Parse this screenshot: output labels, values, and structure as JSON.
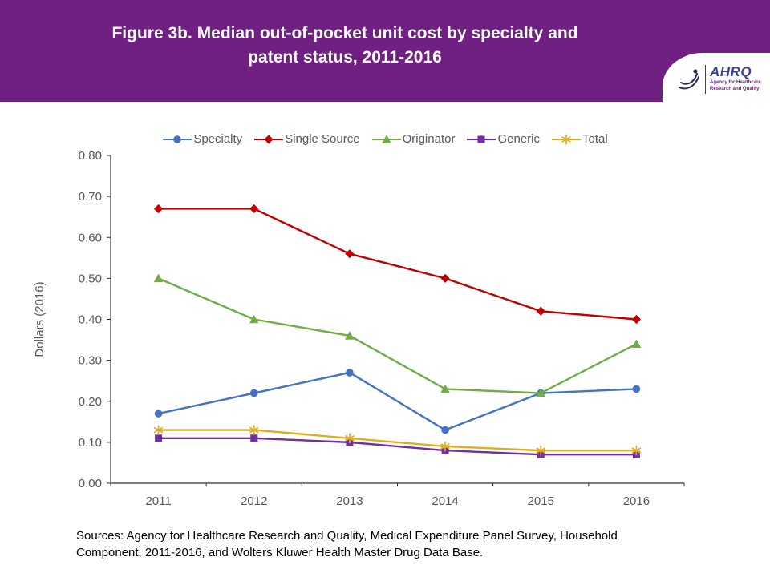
{
  "header": {
    "title_line1": "Figure 3b. Median out-of-pocket unit cost by specialty and",
    "title_line2": "patent status, 2011-2016",
    "background_color": "#702082",
    "logo": {
      "name": "AHRQ",
      "tagline_line1": "Agency for Healthcare",
      "tagline_line2": "Research and Quality"
    }
  },
  "chart_data": {
    "type": "line",
    "title": "Figure 3b. Median out-of-pocket unit cost by specialty and patent status, 2011-2016",
    "x": [
      "2011",
      "2012",
      "2013",
      "2014",
      "2015",
      "2016"
    ],
    "series": [
      {
        "name": "Specialty",
        "color": "#4472C4",
        "marker": "circle",
        "values": [
          0.17,
          0.22,
          0.27,
          0.13,
          0.22,
          0.23
        ]
      },
      {
        "name": "Single Source",
        "color": "#C00000",
        "marker": "diamond",
        "values": [
          0.67,
          0.67,
          0.56,
          0.5,
          0.42,
          0.4
        ]
      },
      {
        "name": "Originator",
        "color": "#70AD47",
        "marker": "triangle",
        "values": [
          0.5,
          0.4,
          0.36,
          0.23,
          0.22,
          0.34
        ]
      },
      {
        "name": "Generic",
        "color": "#7030A0",
        "marker": "square",
        "values": [
          0.11,
          0.11,
          0.1,
          0.08,
          0.07,
          0.07
        ]
      },
      {
        "name": "Total",
        "color": "#E2AC1F",
        "marker": "asterisk",
        "values": [
          0.13,
          0.13,
          0.11,
          0.09,
          0.08,
          0.08
        ]
      }
    ],
    "xlabel": "",
    "ylabel": "Dollars (2016)",
    "ylim": [
      0.0,
      0.8
    ],
    "ytick_step": 0.1,
    "legend_position": "top",
    "grid": false
  },
  "footer": {
    "sources_line1": "Sources: Agency for Healthcare Research and Quality, Medical Expenditure Panel Survey, Household",
    "sources_line2": "Component, 2011-2016, and Wolters Kluwer Health Master Drug Data Base."
  }
}
